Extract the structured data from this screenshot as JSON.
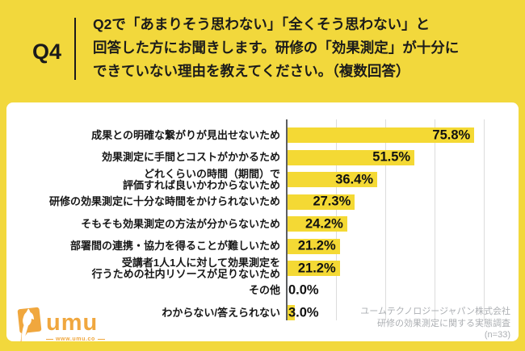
{
  "page": {
    "background_color": "#F2D83C",
    "panel_color": "#FFFFFF"
  },
  "header": {
    "question_number": "Q4",
    "question_text": "Q2で「あまりそう思わない」「全くそう思わない」と\n回答した方にお聞きします。研修の「効果測定」が十分に\nできていない理由を教えてください。（複数回答）"
  },
  "chart_data": {
    "type": "bar",
    "orientation": "horizontal",
    "categories": [
      "成果との明確な繋がりが見出せないため",
      "効果測定に手間とコストがかかるため",
      "どれくらいの時間（期間）で\n評価すれば良いかわからないため",
      "研修の効果測定に十分な時間をかけられないため",
      "そもそも効果測定の方法が分からないため",
      "部署間の連携・協力を得ることが難しいため",
      "受講者1人1人に対して効果測定を\n行うための社内リソースが足りないため",
      "その他",
      "わからない/答えられない"
    ],
    "values": [
      75.8,
      51.5,
      36.4,
      27.3,
      24.2,
      21.2,
      21.2,
      0.0,
      3.0
    ],
    "value_labels": [
      "75.8%",
      "51.5%",
      "36.4%",
      "27.3%",
      "24.2%",
      "21.2%",
      "21.2%",
      "0.0%",
      "3.0%"
    ],
    "xlim": [
      0,
      80
    ],
    "gridlines_pct": [
      20,
      40,
      60,
      80
    ],
    "bar_color": "#F4D934",
    "grid": true,
    "legend": false,
    "title": ""
  },
  "source_note": {
    "lines": [
      "ユームテクノロジージャパン株式会社",
      "研修の効果測定に関する実態調査",
      "(n=33)"
    ]
  },
  "logo": {
    "brand": "umu",
    "url": "www.umu.co",
    "color": "#F0A73E"
  }
}
